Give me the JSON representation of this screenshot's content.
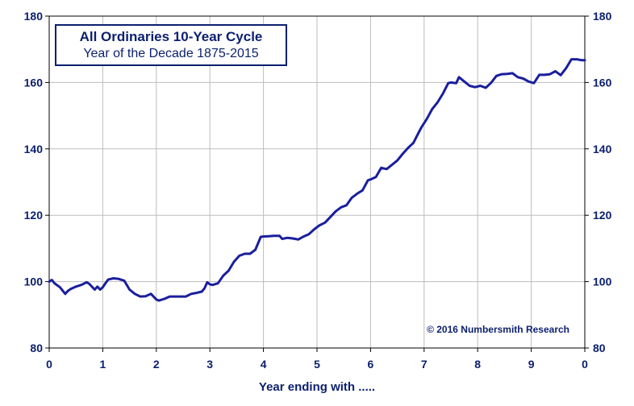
{
  "chart_data": {
    "type": "line",
    "title": "All Ordinaries 10-Year Cycle",
    "subtitle": "Year of the Decade  1875-2015",
    "xlabel": "Year ending with .....",
    "ylabel": "",
    "credit": "© 2016 Numbersmith Research",
    "xlim": [
      0,
      10
    ],
    "ylim": [
      80,
      180
    ],
    "x_ticks": [
      0,
      1,
      2,
      3,
      4,
      5,
      6,
      7,
      8,
      9,
      10
    ],
    "x_tick_labels": [
      "0",
      "1",
      "2",
      "3",
      "4",
      "5",
      "6",
      "7",
      "8",
      "9",
      "0"
    ],
    "y_ticks": [
      80,
      100,
      120,
      140,
      160,
      180
    ],
    "y_tick_labels": [
      "80",
      "100",
      "120",
      "140",
      "160",
      "180"
    ],
    "grid": true,
    "line_color": "#1a1f9c",
    "series": [
      {
        "x": [
          0,
          0.05,
          0.1,
          0.2,
          0.3,
          0.35,
          0.4,
          0.5,
          0.6,
          0.7,
          0.75,
          0.85,
          0.9,
          0.95,
          1.0,
          1.05,
          1.1,
          1.2,
          1.3,
          1.4,
          1.5,
          1.6,
          1.7,
          1.8,
          1.9,
          2.0,
          2.05,
          2.15,
          2.25,
          2.35,
          2.45,
          2.55,
          2.65,
          2.75,
          2.85,
          2.9,
          2.95,
          3.0,
          3.05,
          3.15,
          3.25,
          3.35,
          3.45,
          3.55,
          3.65,
          3.75,
          3.85,
          3.95,
          4.0,
          4.1,
          4.2,
          4.3,
          4.35,
          4.45,
          4.55,
          4.65,
          4.75,
          4.85,
          4.95,
          5.05,
          5.15,
          5.25,
          5.35,
          5.45,
          5.55,
          5.65,
          5.75,
          5.85,
          5.95,
          6.0,
          6.1,
          6.2,
          6.3,
          6.4,
          6.5,
          6.6,
          6.7,
          6.8,
          6.9,
          6.95,
          7.05,
          7.15,
          7.25,
          7.35,
          7.45,
          7.5,
          7.6,
          7.65,
          7.75,
          7.85,
          7.95,
          8.05,
          8.15,
          8.25,
          8.35,
          8.45,
          8.55,
          8.65,
          8.75,
          8.85,
          8.95,
          9.05,
          9.15,
          9.25,
          9.35,
          9.45,
          9.55,
          9.65,
          9.75,
          9.85,
          9.95,
          10.0
        ],
        "y": [
          100,
          100.5,
          99.5,
          98.3,
          96.3,
          97.2,
          97.8,
          98.5,
          99.0,
          99.8,
          99.3,
          97.6,
          98.5,
          97.6,
          98.3,
          99.5,
          100.6,
          101.0,
          100.8,
          100.3,
          97.6,
          96.3,
          95.5,
          95.6,
          96.3,
          94.6,
          94.3,
          94.8,
          95.5,
          95.5,
          95.5,
          95.5,
          96.3,
          96.6,
          97.0,
          98.0,
          99.8,
          99.2,
          99.0,
          99.5,
          101.8,
          103.3,
          106.0,
          107.8,
          108.4,
          108.4,
          109.6,
          113.5,
          113.6,
          113.7,
          113.8,
          113.8,
          112.9,
          113.2,
          113.0,
          112.7,
          113.6,
          114.3,
          115.8,
          117.0,
          117.8,
          119.5,
          121.2,
          122.4,
          123.0,
          125.3,
          126.5,
          127.5,
          130.5,
          130.8,
          131.5,
          134.3,
          133.9,
          135.2,
          136.5,
          138.5,
          140.3,
          141.8,
          145.0,
          146.5,
          149.0,
          152.0,
          154.0,
          156.6,
          159.8,
          160.0,
          159.8,
          161.6,
          160.3,
          159.0,
          158.6,
          159.0,
          158.4,
          159.9,
          162.0,
          162.5,
          162.6,
          162.8,
          161.6,
          161.2,
          160.3,
          159.8,
          162.3,
          162.3,
          162.5,
          163.4,
          162.2,
          164.3,
          167.0,
          167.0,
          166.7,
          166.7
        ]
      }
    ]
  }
}
